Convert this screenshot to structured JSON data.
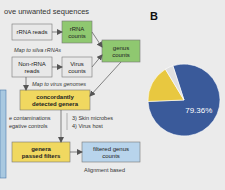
{
  "chart_data": [
    {
      "type": "flowchart",
      "annotations": [
        "rRNA reads",
        "rRNA\ncounts",
        "Non-rRNA\nreads",
        "Virus\ncounts",
        "genus\ncounts",
        "concordantly\ndetected genera",
        "genera\npassed filters",
        "filtered genus\ncounts",
        "ove unwanted sequences",
        "Map to silva rRNAs",
        "Map to virus genomes",
        "e contaminations",
        "egative controls",
        "3) Skin microbes",
        "4) Virus host",
        "Alignment based"
      ],
      "colors": [
        "#e8e8e8",
        "#8fc870",
        "#e8e8e8",
        "#e8e8e8",
        "#8fc870",
        "#f0d860",
        "#f0d860",
        "#b8d4ec",
        "#a8c8e0"
      ]
    },
    {
      "type": "pie",
      "title": "B",
      "values": [
        79.36,
        17.0,
        3.64
      ],
      "colors": [
        "#3a5a9a",
        "#e8c840",
        "#e0e0e0"
      ],
      "value_labels": [
        "79.36%",
        null,
        null
      ]
    }
  ]
}
